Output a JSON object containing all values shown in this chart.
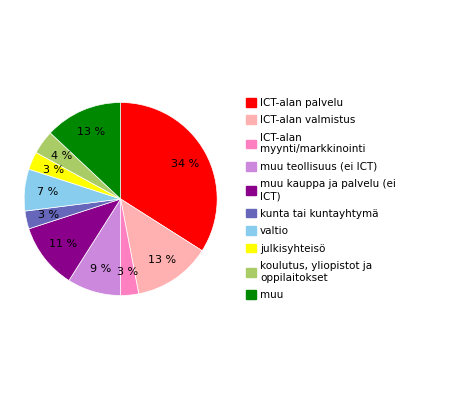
{
  "labels": [
    "ICT-alan palvelu",
    "ICT-alan valmistus",
    "ICT-alan\nmyynti/markkinointi",
    "muu teollisuus (ei ICT)",
    "muu kauppa ja palvelu (ei\nICT)",
    "kunta tai kuntayhtymä",
    "valtio",
    "julkisyhteisö",
    "koulutus, yliopistot ja\noppilaitokset",
    "muu"
  ],
  "values": [
    34,
    13,
    3,
    9,
    11,
    3,
    7,
    3,
    4,
    13
  ],
  "colors": [
    "#FF0000",
    "#FFB0B0",
    "#FF80C0",
    "#CC88DD",
    "#8B008B",
    "#6666BB",
    "#88CCEE",
    "#FFFF00",
    "#AACC66",
    "#008800"
  ],
  "pct_labels": [
    "34 %",
    "13 %",
    "3 %",
    "9 %",
    "11 %",
    "3 %",
    "7 %",
    "3 %",
    "4 %",
    "13 %"
  ],
  "legend_labels": [
    "ICT-alan palvelu",
    "ICT-alan valmistus",
    "ICT-alan\nmyynti/markkinointi",
    "muu teollisuus (ei ICT)",
    "muu kauppa ja palvelu (ei\nICT)",
    "kunta tai kuntayhtymä",
    "valtio",
    "julkisyhteisö",
    "koulutus, yliopistot ja\noppilaitokset",
    "muu"
  ],
  "startangle": 90,
  "figsize": [
    4.64,
    3.98
  ],
  "dpi": 100
}
